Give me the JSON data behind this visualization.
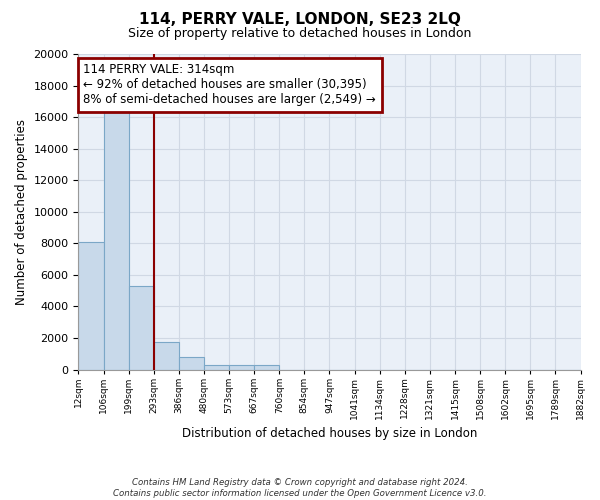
{
  "title": "114, PERRY VALE, LONDON, SE23 2LQ",
  "subtitle": "Size of property relative to detached houses in London",
  "xlabel": "Distribution of detached houses by size in London",
  "ylabel": "Number of detached properties",
  "bar_values": [
    8100,
    16600,
    5300,
    1750,
    800,
    300,
    280,
    270,
    0,
    0,
    0,
    0,
    0,
    0,
    0,
    0,
    0,
    0,
    0,
    0
  ],
  "tick_labels": [
    "12sqm",
    "106sqm",
    "199sqm",
    "293sqm",
    "386sqm",
    "480sqm",
    "573sqm",
    "667sqm",
    "760sqm",
    "854sqm",
    "947sqm",
    "1041sqm",
    "1134sqm",
    "1228sqm",
    "1321sqm",
    "1415sqm",
    "1508sqm",
    "1602sqm",
    "1695sqm",
    "1789sqm",
    "1882sqm"
  ],
  "bar_color": "#c8d9ea",
  "bar_edge_color": "#7ba7c7",
  "vline_x": 3,
  "vline_color": "#8b0000",
  "annotation_title": "114 PERRY VALE: 314sqm",
  "annotation_line1": "← 92% of detached houses are smaller (30,395)",
  "annotation_line2": "8% of semi-detached houses are larger (2,549) →",
  "annotation_box_facecolor": "#ffffff",
  "annotation_box_edgecolor": "#8b0000",
  "ylim": [
    0,
    20000
  ],
  "yticks": [
    0,
    2000,
    4000,
    6000,
    8000,
    10000,
    12000,
    14000,
    16000,
    18000,
    20000
  ],
  "grid_color": "#d0d8e4",
  "bg_color": "#eaf0f8",
  "footer1": "Contains HM Land Registry data © Crown copyright and database right 2024.",
  "footer2": "Contains public sector information licensed under the Open Government Licence v3.0."
}
